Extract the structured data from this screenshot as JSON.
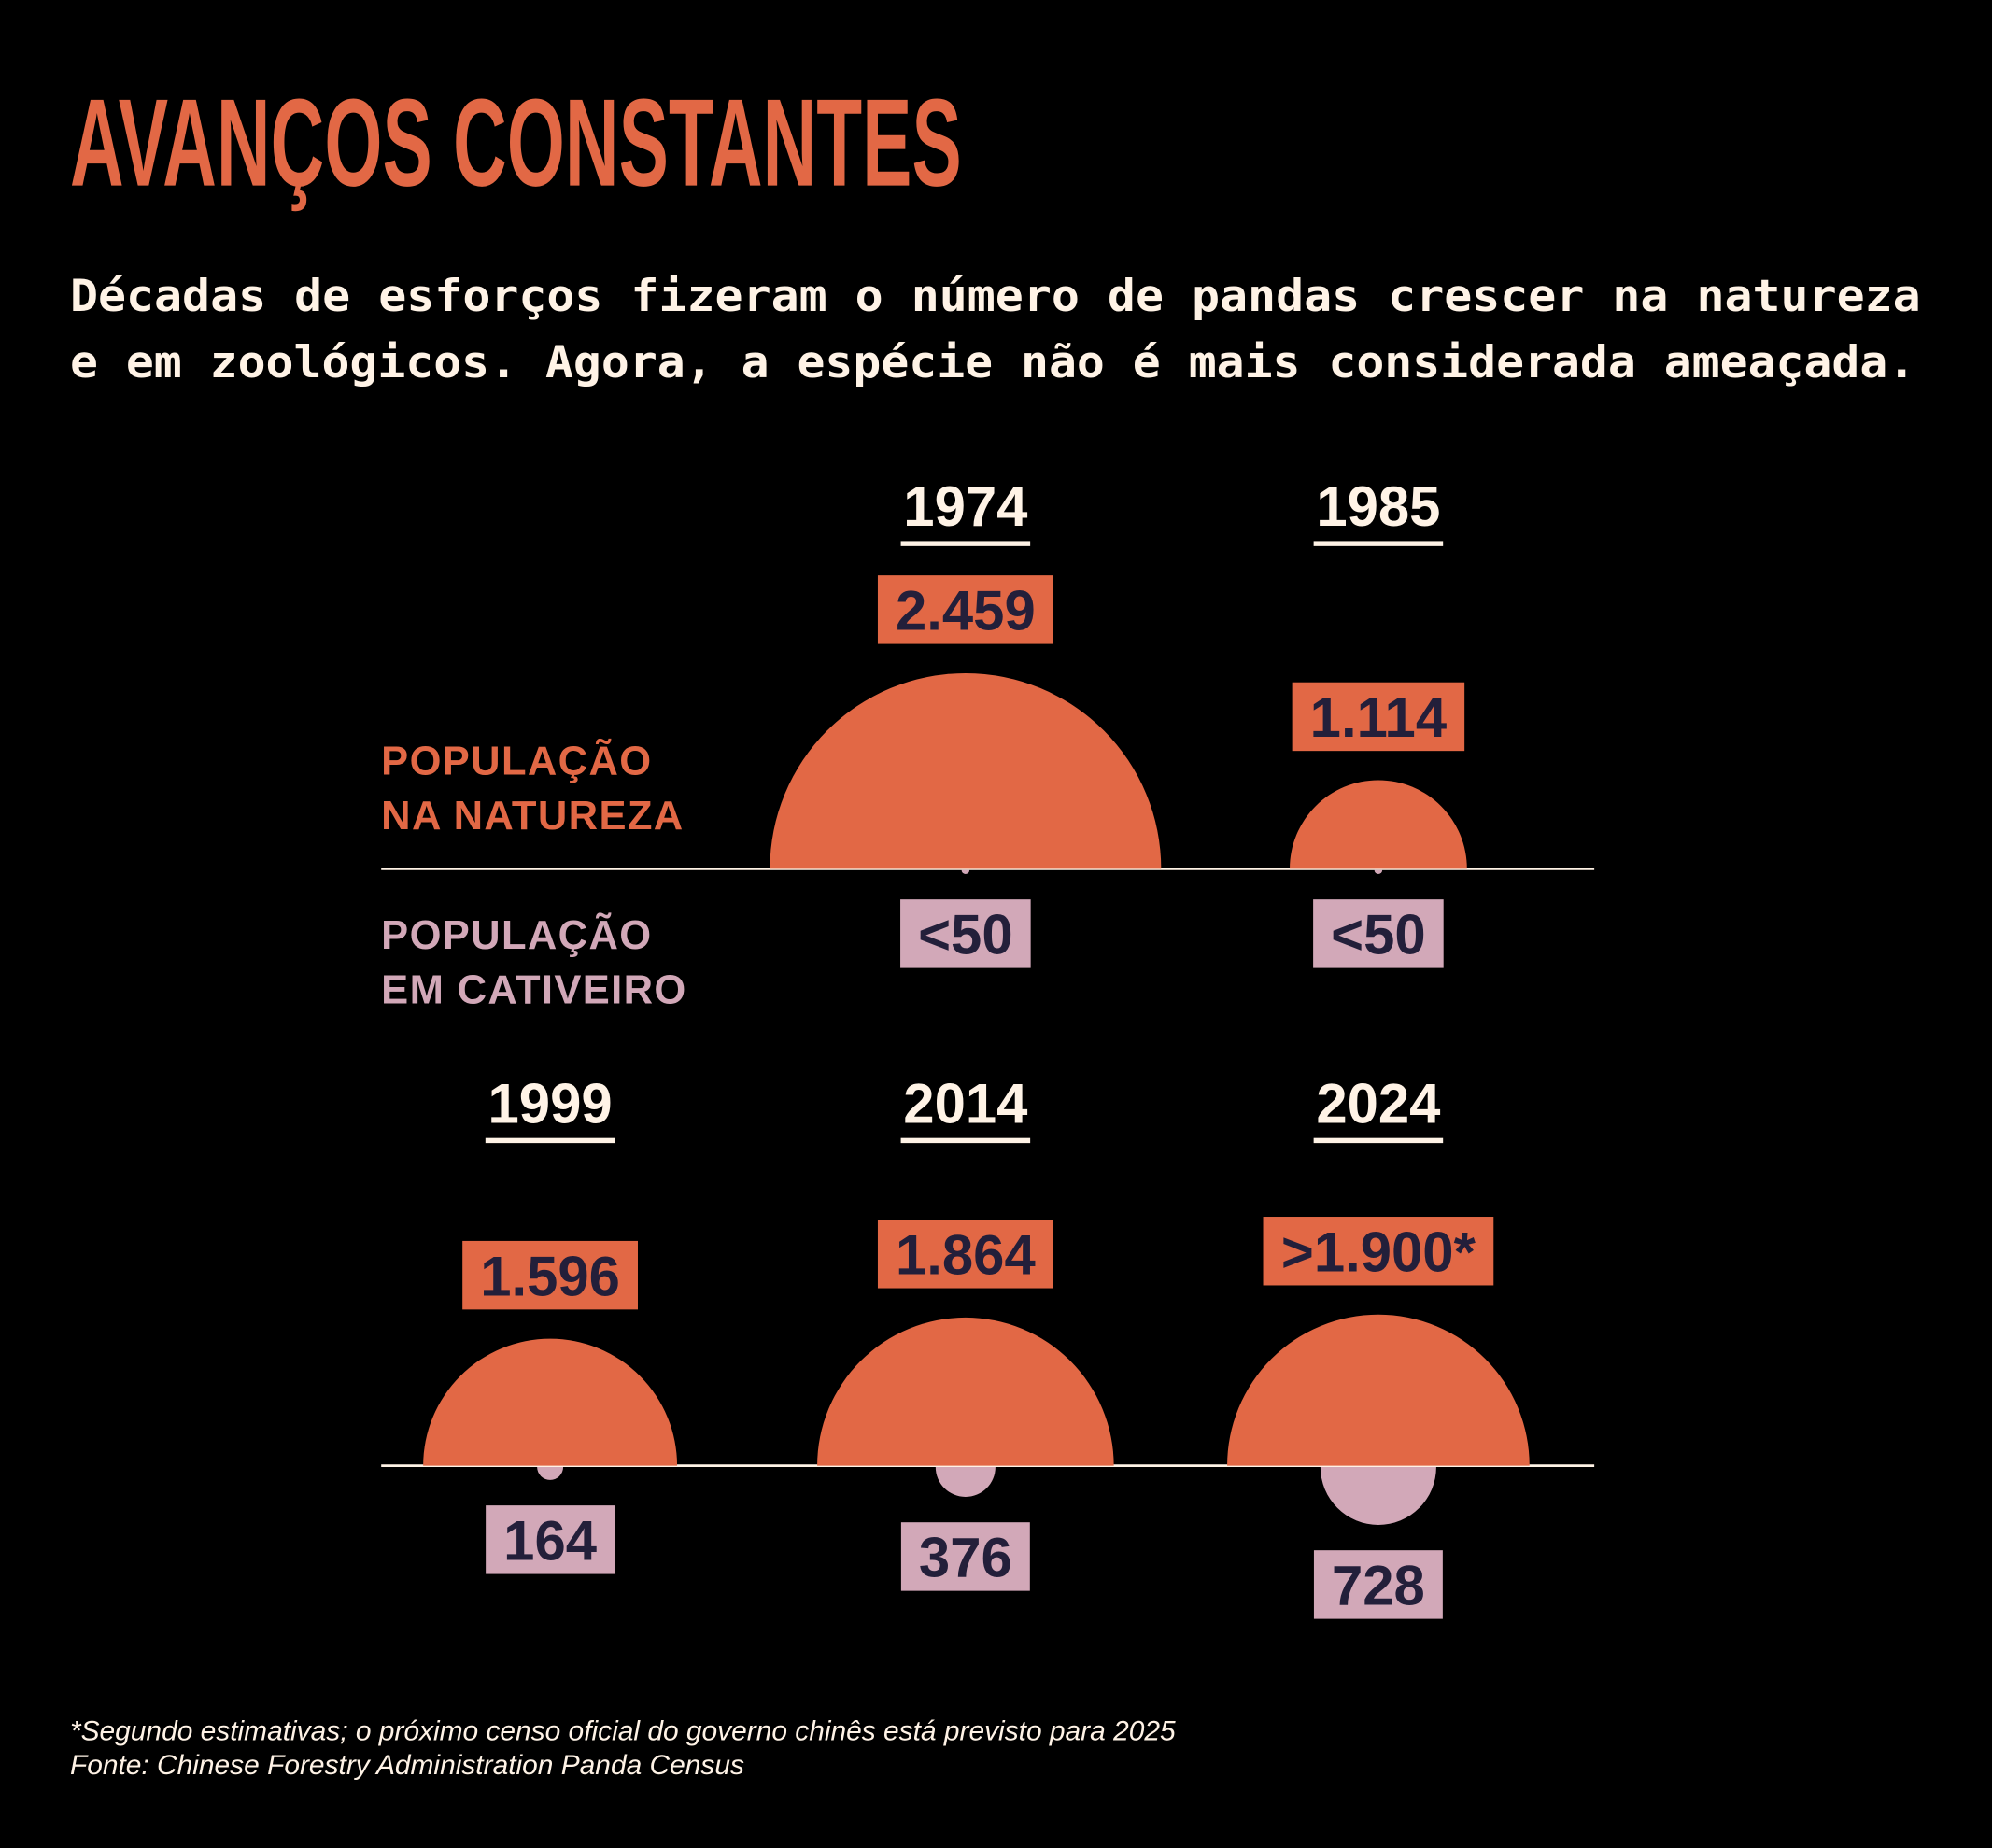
{
  "title": "AVANÇOS CONSTANTES",
  "subtitle": [
    "Décadas de esforços fizeram o número de pandas crescer na natureza",
    "e em zoológicos. Agora, a espécie não é mais considerada ameaçada."
  ],
  "legend": {
    "wild": [
      "POPULAÇÃO",
      "NA NATUREZA"
    ],
    "captive": [
      "POPULAÇÃO",
      "EM CATIVEIRO"
    ]
  },
  "footnote": [
    "*Segundo estimativas; o próximo censo oficial do governo chinês está previsto para 2025",
    "Fonte: Chinese Forestry Administration Panda Census"
  ],
  "colors": {
    "background": "#000000",
    "wild": "#E26845",
    "captive": "#D2A8B8",
    "value_text": "#231F3A",
    "light_text": "#FFF3E6"
  },
  "chart_data": {
    "type": "semicircle",
    "categories": [
      "1974",
      "1985",
      "1999",
      "2014",
      "2024"
    ],
    "series": [
      {
        "name": "POPULAÇÃO NA NATUREZA",
        "values": [
          2459,
          1114,
          1596,
          1864,
          1900
        ],
        "labels": [
          "2.459",
          "1.114",
          "1.596",
          "1.864",
          ">1.900*"
        ]
      },
      {
        "name": "POPULAÇÃO EM CATIVEIRO",
        "values": [
          50,
          50,
          164,
          376,
          728
        ],
        "labels": [
          "<50",
          "<50",
          "164",
          "376",
          "728"
        ]
      }
    ]
  }
}
